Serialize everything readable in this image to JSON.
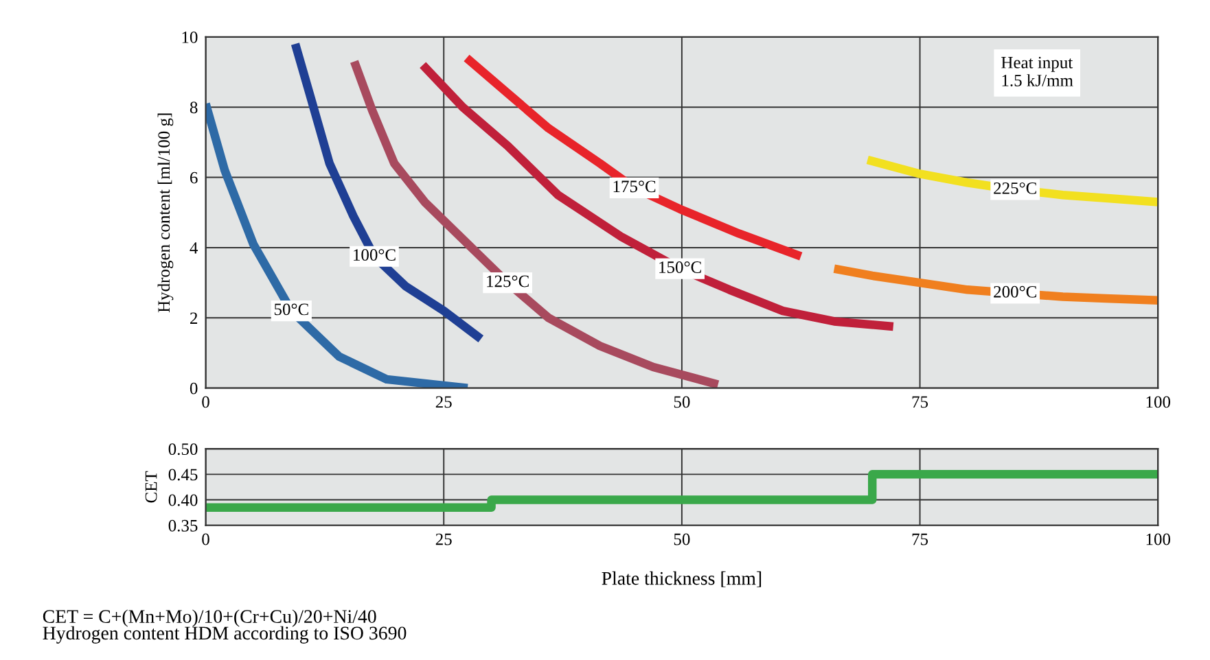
{
  "chart_data": [
    {
      "type": "line",
      "ylabel": "Hydrogen content [ml/100 g]",
      "xlim": [
        0,
        100
      ],
      "xticks": [
        0,
        25,
        50,
        75,
        100
      ],
      "ylim": [
        0,
        10
      ],
      "yticks": [
        0,
        2,
        4,
        6,
        8,
        10
      ],
      "grid": true,
      "legend": false,
      "annotations": [
        "Heat input\n1.5 kJ/mm"
      ],
      "series": [
        {
          "name": "50°C",
          "color": "#2e6aa6",
          "x": [
            0,
            2,
            5,
            9,
            14,
            19,
            27.5
          ],
          "values": [
            8.1,
            6.2,
            4.1,
            2.2,
            0.9,
            0.25,
            0
          ]
        },
        {
          "name": "100°C",
          "color": "#1f3f94",
          "x": [
            9.4,
            11,
            13,
            15.5,
            17.7,
            21,
            25,
            28.9
          ],
          "values": [
            9.8,
            8.3,
            6.4,
            4.9,
            3.75,
            2.9,
            2.2,
            1.4
          ]
        },
        {
          "name": "125°C",
          "color": "#a84a5e",
          "x": [
            15.6,
            17.5,
            19.8,
            23,
            26.4,
            31.7,
            36,
            41.4,
            47,
            53.8
          ],
          "values": [
            9.3,
            7.9,
            6.4,
            5.3,
            4.4,
            3.0,
            2.0,
            1.2,
            0.6,
            0.1
          ]
        },
        {
          "name": "150°C",
          "color": "#c0203a",
          "x": [
            22.8,
            27,
            31.7,
            37,
            43.7,
            49.8,
            55,
            60.6,
            66,
            72.2
          ],
          "values": [
            9.2,
            8.0,
            6.9,
            5.5,
            4.3,
            3.4,
            2.8,
            2.2,
            1.9,
            1.75
          ]
        },
        {
          "name": "175°C",
          "color": "#e8242a",
          "x": [
            27.4,
            31.7,
            36,
            41.4,
            45,
            49.8,
            56,
            62.5
          ],
          "values": [
            9.4,
            8.4,
            7.4,
            6.4,
            5.7,
            5.1,
            4.4,
            3.75
          ]
        },
        {
          "name": "200°C",
          "color": "#f07f1e",
          "x": [
            66,
            70,
            75,
            80,
            85,
            90,
            95,
            100
          ],
          "values": [
            3.4,
            3.2,
            3.0,
            2.8,
            2.7,
            2.6,
            2.55,
            2.5
          ]
        },
        {
          "name": "225°C",
          "color": "#f2e020",
          "x": [
            69.5,
            75,
            80,
            85,
            90,
            95,
            100
          ],
          "values": [
            6.5,
            6.1,
            5.85,
            5.65,
            5.5,
            5.4,
            5.3
          ]
        }
      ]
    },
    {
      "type": "step",
      "ylabel": "CET",
      "xlabel": "Plate thickness [mm]",
      "xlim": [
        0,
        100
      ],
      "xticks": [
        0,
        25,
        50,
        75,
        100
      ],
      "ylim": [
        0.35,
        0.5
      ],
      "yticks": [
        {
          "value": 0.35,
          "label": "0.35"
        },
        {
          "value": 0.4,
          "label": "0.40"
        },
        {
          "value": 0.45,
          "label": "0.45"
        },
        {
          "value": 0.5,
          "label": "0.50"
        }
      ],
      "grid": true,
      "legend": false,
      "annotations": [
        "CET = C+(Mn+Mo)/10+(Cr+Cu)/20+Ni/40\nHydrogen content HDM according to ISO 3690"
      ],
      "series": [
        {
          "color": "#3aa84a",
          "x": [
            0,
            30,
            70,
            100
          ],
          "values": [
            0.385,
            0.4,
            0.45,
            0.45
          ]
        }
      ]
    }
  ]
}
